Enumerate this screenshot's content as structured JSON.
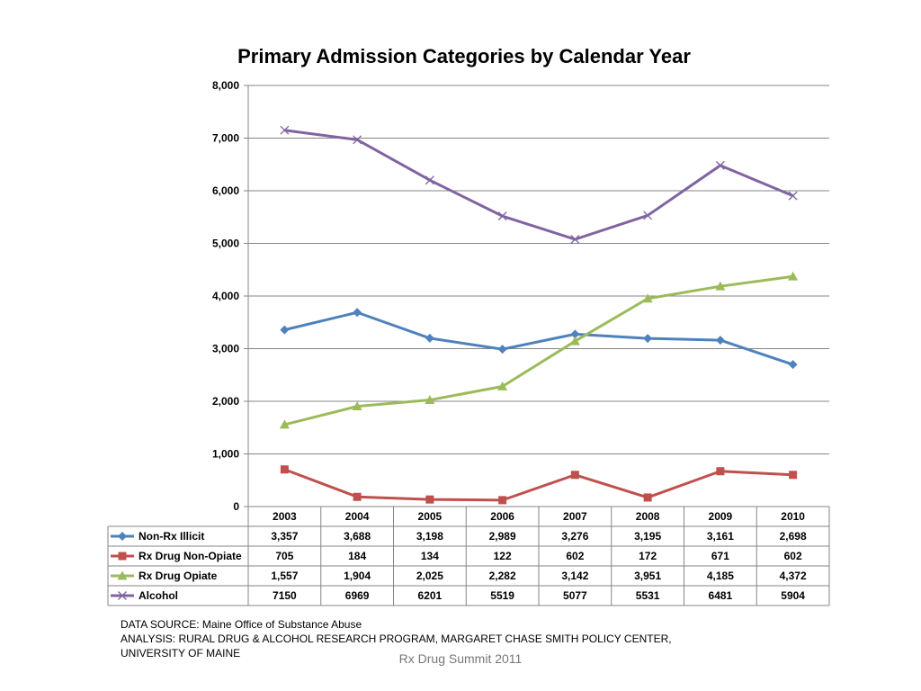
{
  "chart_data": {
    "type": "line",
    "title": "Primary Admission Categories by Calendar Year",
    "categories": [
      "2003",
      "2004",
      "2005",
      "2006",
      "2007",
      "2008",
      "2009",
      "2010"
    ],
    "ylim": [
      0,
      8000
    ],
    "yticks": [
      0,
      1000,
      2000,
      3000,
      4000,
      5000,
      6000,
      7000,
      8000
    ],
    "ytick_labels": [
      "0",
      "1,000",
      "2,000",
      "3,000",
      "4,000",
      "5,000",
      "6,000",
      "7,000",
      "8,000"
    ],
    "grid": true,
    "legend": "data-table",
    "series": [
      {
        "name": "Non-Rx Illicit",
        "color": "#4F81BD",
        "marker": "diamond",
        "values": [
          3357,
          3688,
          3198,
          2989,
          3276,
          3195,
          3161,
          2698
        ],
        "labels": [
          "3,357",
          "3,688",
          "3,198",
          "2,989",
          "3,276",
          "3,195",
          "3,161",
          "2,698"
        ]
      },
      {
        "name": "Rx Drug Non-Opiate",
        "color": "#C0504D",
        "marker": "square",
        "values": [
          705,
          184,
          134,
          122,
          602,
          172,
          671,
          602
        ],
        "labels": [
          "705",
          "184",
          "134",
          "122",
          "602",
          "172",
          "671",
          "602"
        ]
      },
      {
        "name": "Rx Drug Opiate",
        "color": "#9BBB59",
        "marker": "triangle",
        "values": [
          1557,
          1904,
          2025,
          2282,
          3142,
          3951,
          4185,
          4372
        ],
        "labels": [
          "1,557",
          "1,904",
          "2,025",
          "2,282",
          "3,142",
          "3,951",
          "4,185",
          "4,372"
        ]
      },
      {
        "name": "Alcohol",
        "color": "#8064A2",
        "marker": "x",
        "values": [
          7150,
          6969,
          6201,
          5519,
          5077,
          5531,
          6481,
          5904
        ],
        "labels": [
          "7150",
          "6969",
          "6201",
          "5519",
          "5077",
          "5531",
          "6481",
          "5904"
        ]
      }
    ]
  },
  "footnote": {
    "source": "DATA SOURCE: Maine Office of Substance Abuse",
    "analysis": "ANALYSIS: RURAL DRUG & ALCOHOL RESEARCH PROGRAM, MARGARET CHASE SMITH POLICY CENTER, UNIVERSITY OF MAINE"
  },
  "footer": {
    "text": "Rx Drug Summit 2011"
  },
  "colors": {
    "grid": "#868686",
    "table_border": "#868686"
  }
}
